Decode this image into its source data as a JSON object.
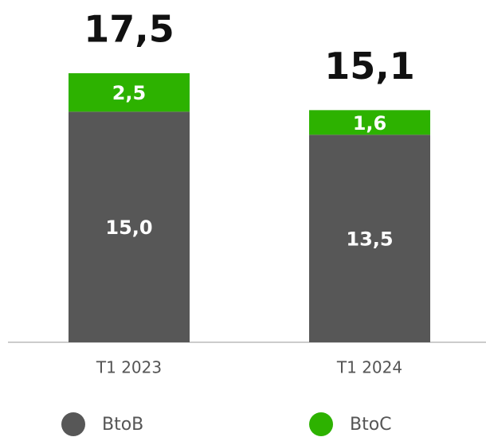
{
  "chart_data": {
    "type": "stacked_bar",
    "categories": [
      "T1 2023",
      "T1 2024"
    ],
    "series": [
      {
        "name": "BtoB",
        "color": "#575757",
        "values": [
          15.0,
          13.5
        ],
        "value_labels": [
          "15,0",
          "13,5"
        ]
      },
      {
        "name": "BtoC",
        "color": "#2db200",
        "values": [
          2.5,
          1.6
        ],
        "value_labels": [
          "2,5",
          "1,6"
        ]
      }
    ],
    "totals": {
      "values": [
        17.5,
        15.1
      ],
      "value_labels": [
        "17,5",
        "15,1"
      ]
    },
    "legend": "bottom"
  }
}
